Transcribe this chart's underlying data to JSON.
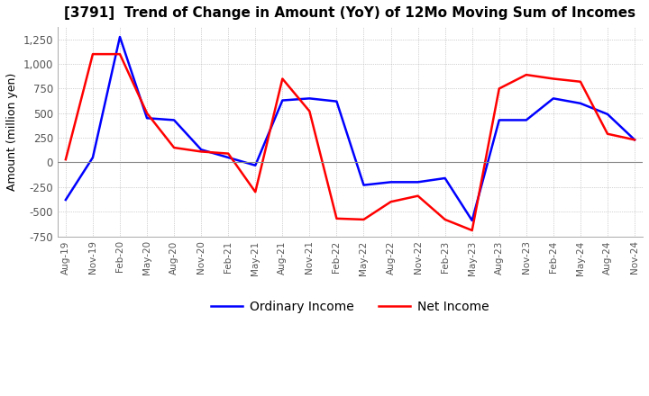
{
  "title": "[3791]  Trend of Change in Amount (YoY) of 12Mo Moving Sum of Incomes",
  "ylabel": "Amount (million yen)",
  "ylim": [
    -750,
    1375
  ],
  "yticks": [
    -750,
    -500,
    -250,
    0,
    250,
    500,
    750,
    1000,
    1250
  ],
  "x_labels": [
    "Aug-19",
    "Nov-19",
    "Feb-20",
    "May-20",
    "Aug-20",
    "Nov-20",
    "Feb-21",
    "May-21",
    "Aug-21",
    "Nov-21",
    "Feb-22",
    "May-22",
    "Aug-22",
    "Nov-22",
    "Feb-23",
    "May-23",
    "Aug-23",
    "Nov-23",
    "Feb-24",
    "May-24",
    "Aug-24",
    "Nov-24"
  ],
  "ordinary_income": [
    -380,
    50,
    1275,
    450,
    430,
    130,
    50,
    -30,
    630,
    650,
    620,
    -230,
    -200,
    -200,
    -160,
    -590,
    430,
    430,
    650,
    600,
    490,
    230
  ],
  "net_income": [
    30,
    1100,
    1100,
    500,
    150,
    110,
    90,
    -300,
    850,
    520,
    -570,
    -580,
    -400,
    -340,
    -580,
    -690,
    750,
    890,
    850,
    820,
    290,
    230
  ],
  "ordinary_color": "#0000FF",
  "net_color": "#FF0000",
  "background_color": "#FFFFFF",
  "grid_color": "#AAAAAA",
  "legend_ordinary": "Ordinary Income",
  "legend_net": "Net Income",
  "title_fontsize": 11,
  "linewidth": 1.8
}
